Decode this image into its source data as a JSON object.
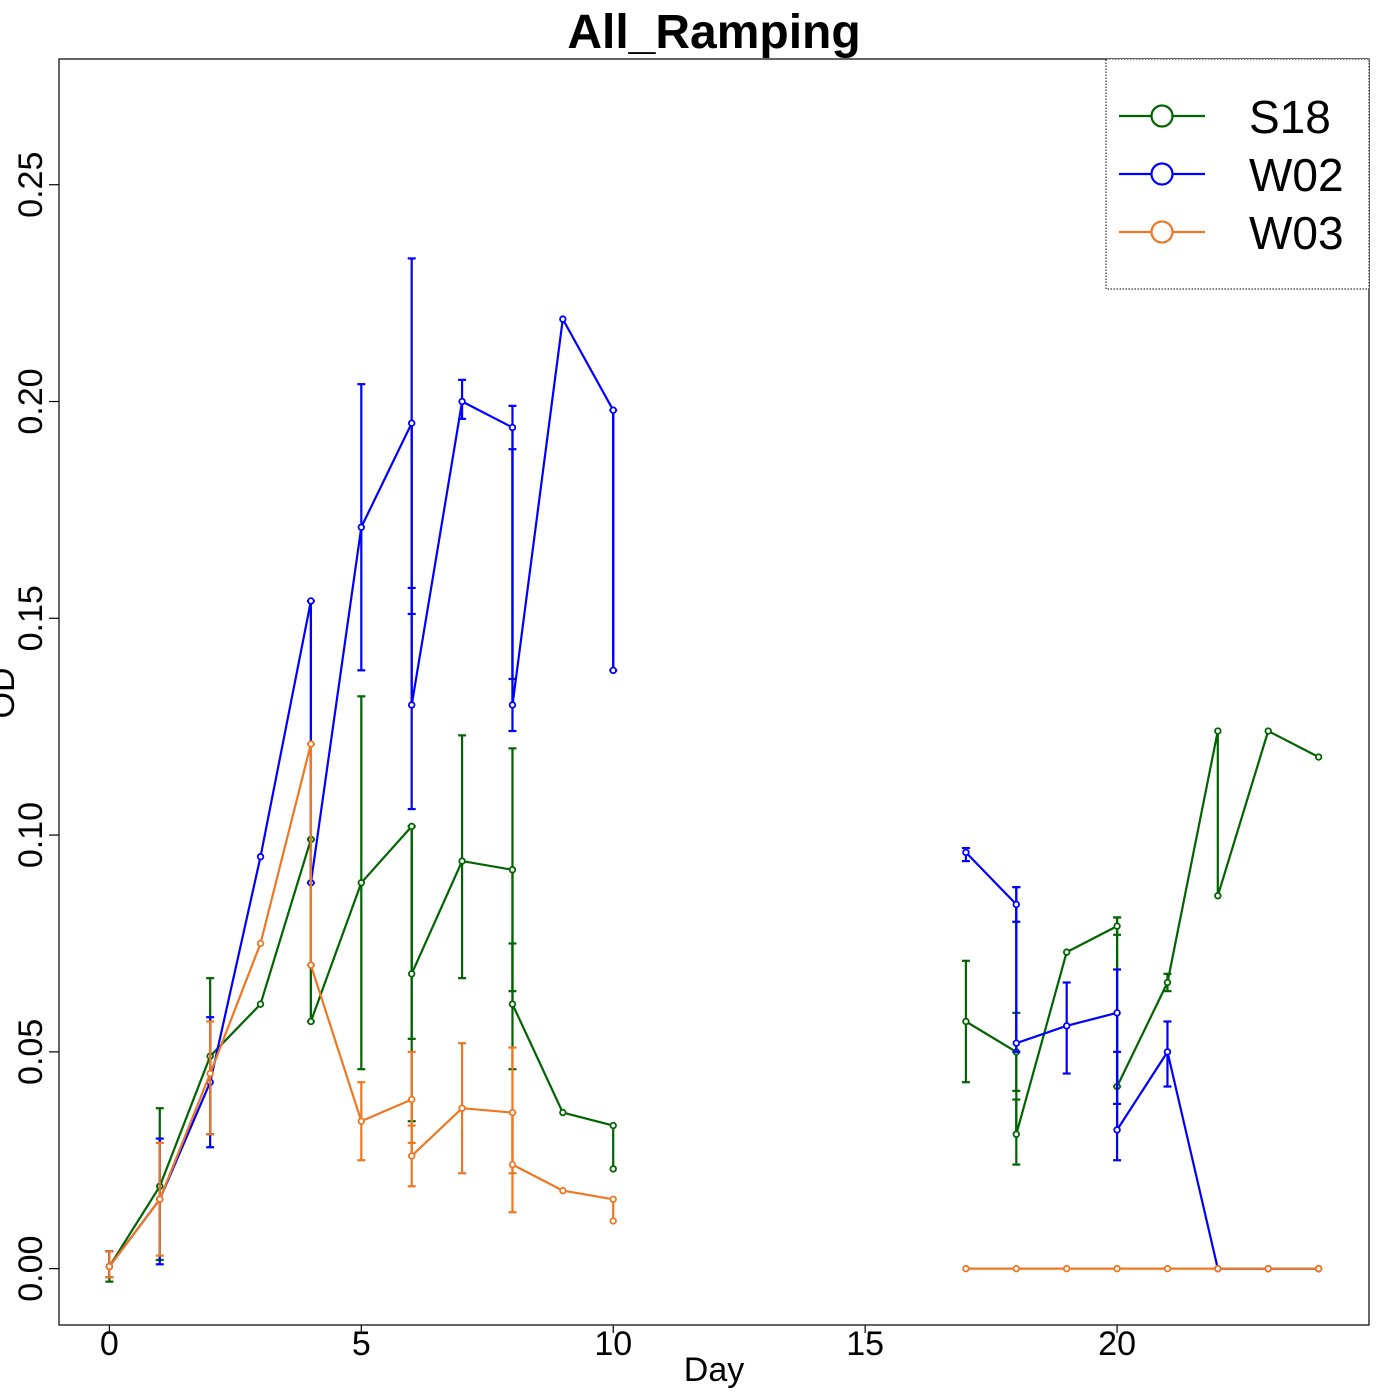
{
  "chart_data": {
    "type": "line",
    "title": "All_Ramping",
    "xlabel": "Day",
    "ylabel": "OD",
    "xlim": [
      -1,
      25
    ],
    "ylim": [
      -0.013,
      0.279
    ],
    "xticks": [
      0,
      5,
      10,
      15,
      20
    ],
    "yticks": [
      0.0,
      0.05,
      0.1,
      0.15,
      0.2,
      0.25
    ],
    "xtick_labels": [
      "0",
      "5",
      "10",
      "15",
      "20"
    ],
    "ytick_labels": [
      "0.00",
      "0.05",
      "0.10",
      "0.15",
      "0.20",
      "0.25"
    ],
    "grid": false,
    "legend_position": "top-right",
    "series": [
      {
        "name": "S18",
        "color": "#006400",
        "segments": [
          [
            [
              0,
              0.0005
            ],
            [
              1,
              0.019
            ],
            [
              2,
              0.049
            ],
            [
              3,
              0.061
            ],
            [
              4,
              0.099
            ],
            [
              4,
              0.057
            ],
            [
              5,
              0.089
            ],
            [
              6,
              0.102
            ],
            [
              6,
              0.068
            ],
            [
              7,
              0.094
            ],
            [
              8,
              0.092
            ],
            [
              8,
              0.061
            ],
            [
              9,
              0.036
            ],
            [
              10,
              0.033
            ],
            [
              10,
              0.023
            ]
          ],
          [
            [
              17,
              0.057
            ],
            [
              18,
              0.05
            ],
            [
              18,
              0.031
            ],
            [
              19,
              0.073
            ],
            [
              20,
              0.079
            ],
            [
              20,
              0.042
            ],
            [
              21,
              0.066
            ],
            [
              22,
              0.124
            ],
            [
              22,
              0.086
            ],
            [
              23,
              0.124
            ],
            [
              24,
              0.118
            ]
          ]
        ],
        "error_bars": [
          [
            0,
            -0.003,
            0.004
          ],
          [
            1,
            0.002,
            0.037
          ],
          [
            2,
            0.031,
            0.067
          ],
          [
            4,
            0.057,
            0.099
          ],
          [
            5,
            0.046,
            0.132
          ],
          [
            6,
            0.034,
            0.102
          ],
          [
            6,
            0.053,
            0.102
          ],
          [
            7,
            0.067,
            0.123
          ],
          [
            8,
            0.046,
            0.12
          ],
          [
            8,
            0.064,
            0.075
          ],
          [
            17,
            0.043,
            0.071
          ],
          [
            18,
            0.024,
            0.039
          ],
          [
            18,
            0.041,
            0.059
          ],
          [
            20,
            0.042,
            0.081
          ],
          [
            20,
            0.077,
            0.081
          ],
          [
            21,
            0.064,
            0.068
          ]
        ]
      },
      {
        "name": "W02",
        "color": "#0000ff",
        "segments": [
          [
            [
              0,
              0.0005
            ],
            [
              1,
              0.016
            ],
            [
              2,
              0.043
            ],
            [
              3,
              0.095
            ],
            [
              4,
              0.154
            ],
            [
              4,
              0.089
            ],
            [
              5,
              0.171
            ],
            [
              6,
              0.195
            ],
            [
              6,
              0.13
            ],
            [
              7,
              0.2
            ],
            [
              8,
              0.194
            ],
            [
              8,
              0.13
            ],
            [
              9,
              0.219
            ],
            [
              10,
              0.198
            ],
            [
              10,
              0.138
            ]
          ],
          [
            [
              17,
              0.096
            ],
            [
              18,
              0.084
            ],
            [
              18,
              0.052
            ],
            [
              19,
              0.056
            ],
            [
              20,
              0.059
            ],
            [
              20,
              0.032
            ],
            [
              21,
              0.05
            ],
            [
              22,
              0.0
            ],
            [
              23,
              0.0
            ],
            [
              24,
              0.0
            ]
          ]
        ],
        "error_bars": [
          [
            0,
            -0.002,
            0.004
          ],
          [
            1,
            0.001,
            0.03
          ],
          [
            2,
            0.028,
            0.058
          ],
          [
            4,
            0.089,
            0.154
          ],
          [
            5,
            0.138,
            0.204
          ],
          [
            6,
            0.106,
            0.233
          ],
          [
            6,
            0.151,
            0.157
          ],
          [
            7,
            0.196,
            0.205
          ],
          [
            8,
            0.124,
            0.199
          ],
          [
            8,
            0.136,
            0.189
          ],
          [
            10,
            0.138,
            0.198
          ],
          [
            17,
            0.094,
            0.097
          ],
          [
            18,
            0.05,
            0.088
          ],
          [
            18,
            0.08,
            0.088
          ],
          [
            19,
            0.045,
            0.066
          ],
          [
            20,
            0.025,
            0.069
          ],
          [
            20,
            0.038,
            0.05
          ],
          [
            21,
            0.042,
            0.057
          ]
        ]
      },
      {
        "name": "W03",
        "color": "#ee7722",
        "segments": [
          [
            [
              0,
              0.0005
            ],
            [
              1,
              0.016
            ],
            [
              2,
              0.045
            ],
            [
              3,
              0.075
            ],
            [
              4,
              0.121
            ],
            [
              4,
              0.07
            ],
            [
              5,
              0.034
            ],
            [
              6,
              0.039
            ],
            [
              6,
              0.026
            ],
            [
              7,
              0.037
            ],
            [
              8,
              0.036
            ],
            [
              8,
              0.024
            ],
            [
              9,
              0.018
            ],
            [
              10,
              0.016
            ],
            [
              10,
              0.011
            ]
          ],
          [
            [
              17,
              0.0
            ],
            [
              18,
              0.0
            ],
            [
              19,
              0.0
            ],
            [
              20,
              0.0
            ],
            [
              21,
              0.0
            ],
            [
              22,
              0.0
            ],
            [
              23,
              0.0
            ],
            [
              24,
              0.0
            ]
          ]
        ],
        "error_bars": [
          [
            0,
            -0.002,
            0.004
          ],
          [
            1,
            0.003,
            0.029
          ],
          [
            2,
            0.031,
            0.057
          ],
          [
            4,
            0.07,
            0.121
          ],
          [
            5,
            0.025,
            0.043
          ],
          [
            6,
            0.019,
            0.05
          ],
          [
            6,
            0.029,
            0.033
          ],
          [
            7,
            0.022,
            0.052
          ],
          [
            8,
            0.013,
            0.051
          ],
          [
            8,
            0.022,
            0.036
          ]
        ]
      }
    ]
  }
}
